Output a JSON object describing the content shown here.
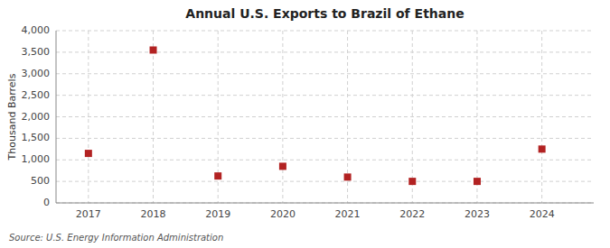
{
  "chart_data": {
    "type": "scatter",
    "title": "Annual U.S. Exports to Brazil of Ethane",
    "y_label": "Thousand Barrels",
    "source": "Source: U.S. Energy Information Administration",
    "x": [
      2017,
      2018,
      2019,
      2020,
      2021,
      2022,
      2023,
      2024
    ],
    "values": [
      1150,
      3550,
      625,
      850,
      600,
      500,
      500,
      1250
    ],
    "color": "#b22222",
    "marker": "square",
    "xlim": [
      2016.5,
      2024.8
    ],
    "xticks": [
      2017,
      2018,
      2019,
      2020,
      2021,
      2022,
      2023,
      2024
    ],
    "ylim": [
      0,
      4000
    ],
    "yticks": [
      0,
      500,
      {
        "value": 1000,
        "label": "1,000"
      },
      {
        "value": 1500,
        "label": "1,500"
      },
      {
        "value": 2000,
        "label": "2,000"
      },
      {
        "value": 2500,
        "label": "2,500"
      },
      {
        "value": 3000,
        "label": "3,000"
      },
      {
        "value": 3500,
        "label": "3,500"
      },
      {
        "value": 4000,
        "label": "4,000"
      }
    ],
    "grid": true
  }
}
